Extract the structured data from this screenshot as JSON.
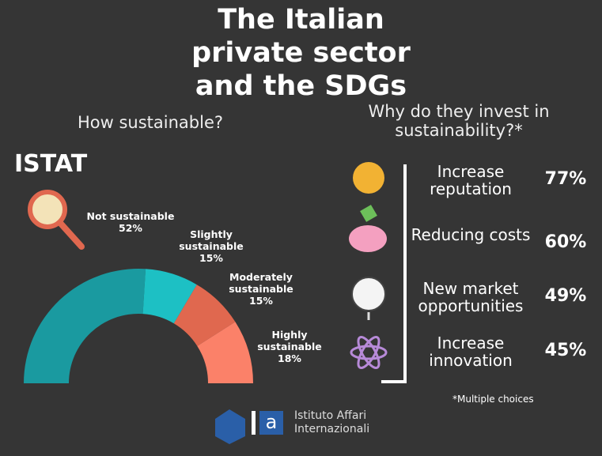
{
  "title": "The Italian private sector and the SDGs",
  "chart_data": [
    {
      "type": "half-donut",
      "title": "How sustainable?",
      "source": "ISTAT",
      "categories": [
        "Not sustainable",
        "Slightly sustainable",
        "Moderately sustainable",
        "Highly sustainable"
      ],
      "values": [
        52,
        15,
        15,
        18
      ],
      "value_labels": [
        "52%",
        "15%",
        "15%",
        "18%"
      ],
      "colors": [
        "#1a9aa0",
        "#1dc0c4",
        "#e0684f",
        "#fb8169"
      ]
    },
    {
      "type": "list",
      "title": "Why do they invest in sustainability?*",
      "categories": [
        "Increase reputation",
        "Reducing costs",
        "New market opportunities",
        "Increase innovation"
      ],
      "values": [
        77,
        60,
        49,
        45
      ],
      "value_labels": [
        "77%",
        "60%",
        "49%",
        "45%"
      ],
      "note": "*Multiple choices"
    }
  ],
  "logo": {
    "line1": "Istituto Affari",
    "line2": "Internazionali"
  }
}
